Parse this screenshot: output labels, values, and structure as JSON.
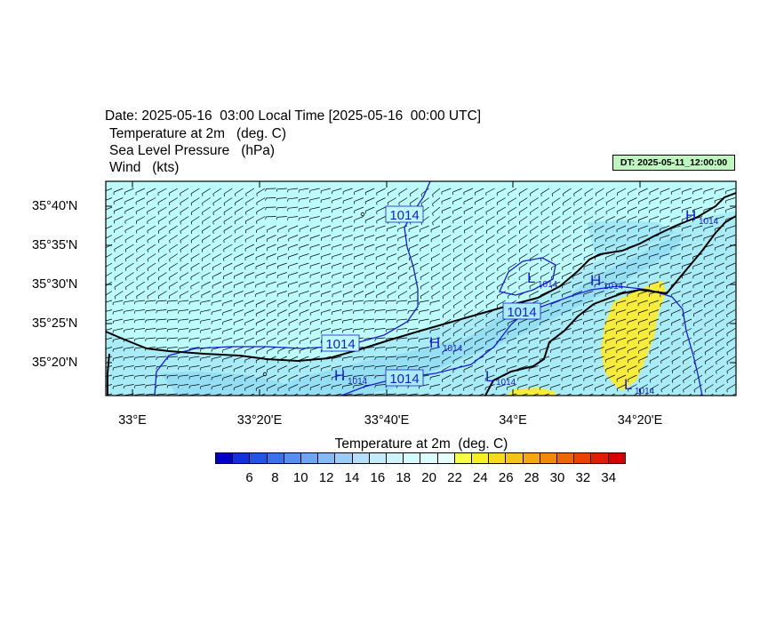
{
  "header": {
    "date_line": "Date: 2025-05-16  03:00 Local Time [2025-05-16  00:00 UTC]",
    "field1": "Temperature at 2m   (deg. C)",
    "field2": "Sea Level Pressure   (hPa)",
    "field3": "Wind   (kts)",
    "dt_badge": "DT: 2025-05-11_12:00:00"
  },
  "map": {
    "y_ticks": [
      "35°40'N",
      "35°35'N",
      "35°30'N",
      "35°25'N",
      "35°20'N"
    ],
    "x_ticks": [
      "33°E",
      "33°20'E",
      "33°40'E",
      "34°E",
      "34°20'E"
    ],
    "contour_labels": [
      {
        "kind": "box",
        "text": "1014"
      },
      {
        "kind": "box",
        "text": "1014"
      },
      {
        "kind": "box",
        "text": "1014"
      },
      {
        "kind": "box",
        "text": "1014"
      },
      {
        "kind": "high",
        "letter": "H",
        "value": "1014"
      },
      {
        "kind": "high",
        "letter": "H",
        "value": "1014"
      },
      {
        "kind": "high",
        "letter": "H",
        "value": "1014"
      },
      {
        "kind": "low",
        "letter": "L",
        "value": "1014"
      },
      {
        "kind": "low",
        "letter": "L",
        "value": "1014"
      },
      {
        "kind": "low",
        "letter": "L",
        "value": "1014"
      }
    ],
    "colors": {
      "sea": "#bdfcfc",
      "land_light": "#a8ecf8",
      "land_mid": "#90dcf4",
      "warm": "#f7ec3a",
      "isobar": "#1a1adb",
      "coast": "#000000"
    }
  },
  "colorbar": {
    "title": "Temperature at 2m  (deg. C)",
    "colors": [
      "#0000c8",
      "#1330dc",
      "#2254e6",
      "#3a72ee",
      "#5590f0",
      "#6ca6f2",
      "#85baf4",
      "#9ccdf6",
      "#b3e0f8",
      "#c2ecfa",
      "#ccf4fb",
      "#d3fafc",
      "#dafcfc",
      "#e4fdfd",
      "#f7fe46",
      "#f6ef24",
      "#f6da1d",
      "#f4c416",
      "#f3a90e",
      "#f18a09",
      "#ee6707",
      "#eb4204",
      "#e21c03",
      "#d80000"
    ],
    "ticks": [
      "6",
      "8",
      "10",
      "12",
      "14",
      "16",
      "18",
      "20",
      "22",
      "24",
      "26",
      "28",
      "30",
      "32",
      "34"
    ]
  }
}
